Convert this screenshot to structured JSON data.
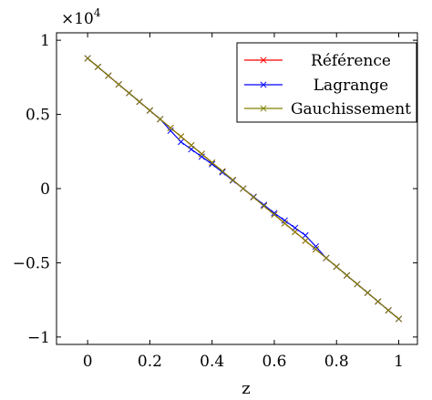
{
  "chart_data": {
    "type": "line",
    "title": "",
    "xlabel": "z",
    "ylabel": "",
    "y_multiplier": "×10",
    "y_multiplier_exponent": "4",
    "xlim": [
      -0.1,
      1.06
    ],
    "ylim": [
      -1.05,
      1.05
    ],
    "xticks": [
      0,
      0.2,
      0.4,
      0.6,
      0.8,
      1
    ],
    "xtick_labels": [
      "0",
      "0.2",
      "0.4",
      "0.6",
      "0.8",
      "1"
    ],
    "yticks": [
      -1,
      -0.5,
      0,
      0.5,
      1
    ],
    "ytick_labels": [
      "−1",
      "−0.5",
      "0",
      "0.5",
      "1"
    ],
    "grid": false,
    "legend_position": "top-right",
    "series": [
      {
        "name": "Référence",
        "color": "#ff0000",
        "marker": "x",
        "x": [
          0,
          0.0333,
          0.0667,
          0.1,
          0.1333,
          0.1667,
          0.2,
          0.2333,
          0.2667,
          0.3,
          0.3333,
          0.3667,
          0.4,
          0.4333,
          0.4667,
          0.5,
          0.5333,
          0.5667,
          0.6,
          0.6333,
          0.6667,
          0.7,
          0.7333,
          0.7667,
          0.8,
          0.8333,
          0.8667,
          0.9,
          0.9333,
          0.9667,
          1
        ],
        "y": [
          0.878,
          0.82,
          0.761,
          0.702,
          0.644,
          0.585,
          0.526,
          0.468,
          0.409,
          0.351,
          0.292,
          0.234,
          0.175,
          0.117,
          0.058,
          0,
          -0.058,
          -0.117,
          -0.175,
          -0.234,
          -0.292,
          -0.351,
          -0.409,
          -0.468,
          -0.526,
          -0.585,
          -0.644,
          -0.702,
          -0.761,
          -0.82,
          -0.878
        ]
      },
      {
        "name": "Lagrange",
        "color": "#0000ff",
        "marker": "x",
        "x": [
          0,
          0.0333,
          0.0667,
          0.1,
          0.1333,
          0.1667,
          0.2,
          0.2333,
          0.2667,
          0.3,
          0.3333,
          0.3667,
          0.4,
          0.4333,
          0.4667,
          0.5,
          0.5333,
          0.5667,
          0.6,
          0.6333,
          0.6667,
          0.7,
          0.7333,
          0.7667,
          0.8,
          0.8333,
          0.8667,
          0.9,
          0.9333,
          0.9667,
          1
        ],
        "y": [
          0.878,
          0.82,
          0.761,
          0.702,
          0.644,
          0.585,
          0.526,
          0.468,
          0.39,
          0.315,
          0.265,
          0.215,
          0.165,
          0.11,
          0.055,
          0,
          -0.055,
          -0.11,
          -0.165,
          -0.215,
          -0.265,
          -0.315,
          -0.39,
          -0.468,
          -0.526,
          -0.585,
          -0.644,
          -0.702,
          -0.761,
          -0.82,
          -0.878
        ]
      },
      {
        "name": "Gauchissement",
        "color": "#808000",
        "marker": "x",
        "x": [
          0,
          0.0333,
          0.0667,
          0.1,
          0.1333,
          0.1667,
          0.2,
          0.2333,
          0.2667,
          0.3,
          0.3333,
          0.3667,
          0.4,
          0.4333,
          0.4667,
          0.5,
          0.5333,
          0.5667,
          0.6,
          0.6333,
          0.6667,
          0.7,
          0.7333,
          0.7667,
          0.8,
          0.8333,
          0.8667,
          0.9,
          0.9333,
          0.9667,
          1
        ],
        "y": [
          0.878,
          0.82,
          0.761,
          0.702,
          0.644,
          0.585,
          0.526,
          0.468,
          0.409,
          0.351,
          0.292,
          0.234,
          0.175,
          0.117,
          0.058,
          0,
          -0.058,
          -0.117,
          -0.175,
          -0.234,
          -0.292,
          -0.351,
          -0.409,
          -0.468,
          -0.526,
          -0.585,
          -0.644,
          -0.702,
          -0.761,
          -0.82,
          -0.878
        ]
      }
    ]
  }
}
